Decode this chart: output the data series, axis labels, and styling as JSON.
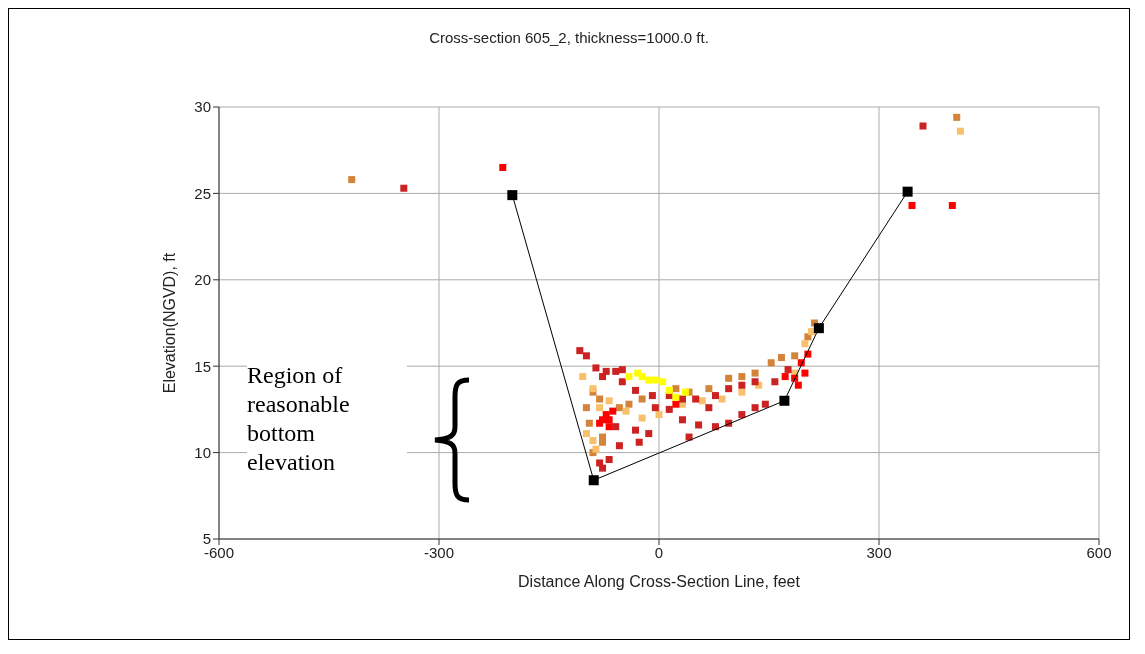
{
  "chart_data": {
    "type": "scatter",
    "title": "Cross-section 605_2, thickness=1000.0 ft.",
    "xlabel": "Distance Along Cross-Section Line, feet",
    "ylabel": "Elevation(NGVD), ft",
    "xlim": [
      -600,
      600
    ],
    "xticks": [
      -600,
      -300,
      0,
      300,
      600
    ],
    "ylim": [
      5,
      30
    ],
    "yticks": [
      5,
      10,
      15,
      20,
      25,
      30
    ],
    "grid": true,
    "legend": false,
    "marker": "square",
    "annotations": [
      "Region of reasonable bottom elevation"
    ],
    "series": [
      {
        "color": "#d4843a",
        "x": [
          -419,
          406,
          -99,
          -95,
          -77,
          -77,
          -68,
          -54,
          -41,
          -23,
          -5,
          23,
          41,
          68,
          95,
          113,
          131,
          153,
          167,
          185,
          203,
          212,
          -81,
          -90,
          -90
        ],
        "values": [
          25.8,
          29.4,
          12.6,
          11.7,
          10.9,
          10.6,
          null,
          12.6,
          12.8,
          13.1,
          null,
          13.7,
          13.5,
          13.7,
          14.3,
          14.4,
          14.6,
          15.2,
          15.5,
          15.6,
          16.7,
          17.5,
          13.1,
          13.5,
          10.0
        ]
      },
      {
        "color": "#f8c06a",
        "x": [
          411,
          -104,
          -90,
          -68,
          -45,
          -23,
          0,
          32,
          59,
          86,
          113,
          136,
          158,
          185,
          199,
          208,
          -90,
          -86,
          -99,
          -81
        ],
        "values": [
          28.6,
          14.4,
          13.7,
          13.0,
          12.4,
          12.0,
          12.2,
          12.8,
          13.0,
          13.1,
          13.5,
          13.9,
          null,
          14.6,
          16.3,
          17.0,
          10.7,
          10.2,
          11.1,
          12.6
        ]
      },
      {
        "color": "#cc2222",
        "x": [
          -348,
          360,
          -108,
          -99,
          -86,
          -72,
          -59,
          -50,
          -77,
          -50,
          -32,
          -9,
          14,
          32,
          50,
          77,
          95,
          113,
          131,
          158,
          176,
          32,
          54,
          77,
          95,
          113,
          131,
          145,
          -32,
          -14,
          -27,
          41,
          -54,
          -68,
          -81,
          -77,
          -59,
          14,
          -5,
          68
        ],
        "values": [
          25.3,
          28.9,
          15.9,
          15.6,
          14.9,
          14.7,
          14.7,
          14.8,
          14.4,
          14.1,
          13.6,
          13.3,
          13.3,
          13.1,
          13.1,
          13.3,
          13.7,
          13.9,
          14.1,
          14.1,
          14.8,
          11.9,
          11.6,
          11.5,
          11.7,
          12.2,
          12.6,
          12.8,
          11.3,
          11.1,
          10.6,
          10.9,
          10.4,
          9.6,
          9.4,
          9.1,
          11.5,
          12.5,
          12.6,
          12.6
        ]
      },
      {
        "color": "#ff0000",
        "x": [
          -213,
          345,
          400,
          -72,
          -68,
          -77,
          -63,
          -81,
          23,
          194,
          199,
          190,
          203,
          185,
          172,
          -68
        ],
        "values": [
          26.5,
          24.3,
          24.3,
          12.2,
          11.9,
          11.9,
          12.4,
          11.7,
          12.8,
          15.2,
          14.6,
          13.9,
          15.7,
          14.3,
          14.4,
          11.5
        ]
      },
      {
        "color": "#ffff00",
        "x": [
          -41,
          -29,
          -23,
          -14,
          -5,
          5,
          14,
          23,
          36
        ],
        "values": [
          14.4,
          14.6,
          14.4,
          14.2,
          14.2,
          14.1,
          13.6,
          13.2,
          13.5
        ]
      },
      {
        "type": "line",
        "color": "#000000",
        "x": [
          -200,
          -89,
          171,
          218,
          339
        ],
        "values": [
          24.9,
          8.4,
          13.0,
          17.2,
          25.1
        ]
      }
    ]
  }
}
